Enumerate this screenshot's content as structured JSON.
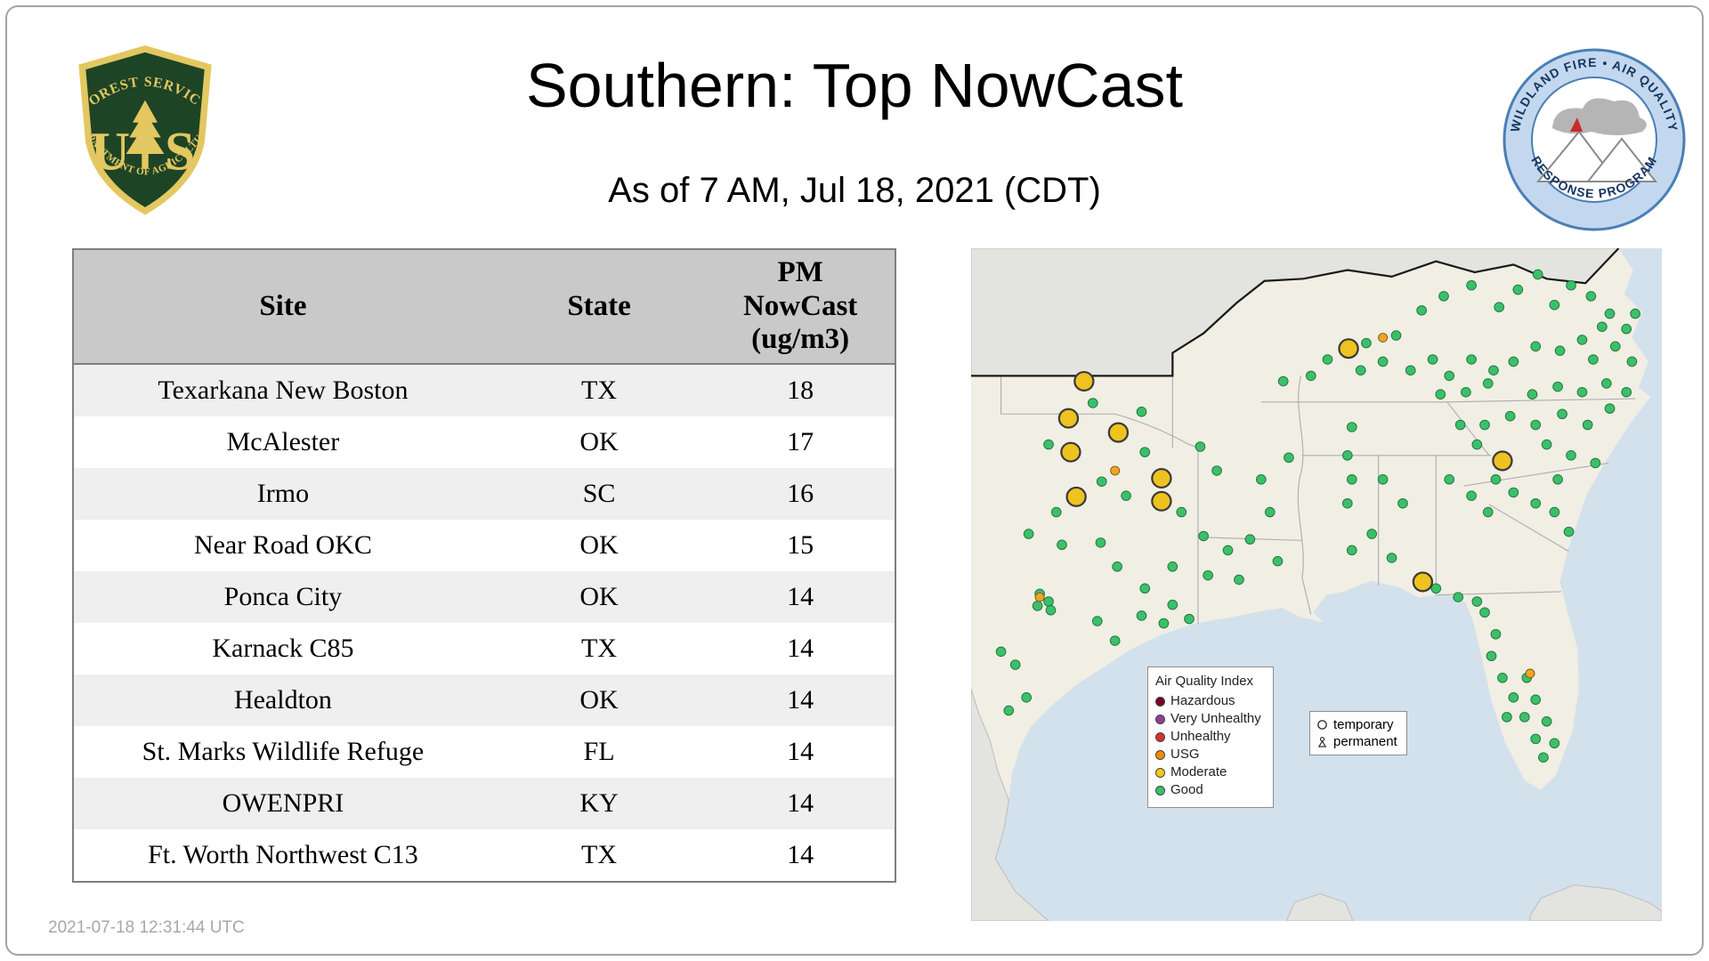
{
  "page": {
    "title": "Southern: Top NowCast",
    "subtitle": "As of  7 AM, Jul 18, 2021 (CDT)",
    "footer_timestamp": "2021-07-18 12:31:44 UTC"
  },
  "logos": {
    "forest_service": {
      "top_text": "FOREST SERVICE",
      "monogram_left": "U",
      "monogram_right": "S",
      "bottom_text": "DEPARTMENT OF AGRICULTURE"
    },
    "wfaqrp": {
      "top_text": "WILDLAND FIRE • AIR QUALITY",
      "bottom_text": "RESPONSE PROGRAM"
    }
  },
  "table": {
    "headers": {
      "site": "Site",
      "state": "State",
      "pm": "PM\nNowCast\n(ug/m3)"
    },
    "rows": [
      {
        "site": "Texarkana New Boston",
        "state": "TX",
        "pm": "18"
      },
      {
        "site": "McAlester",
        "state": "OK",
        "pm": "17"
      },
      {
        "site": "Irmo",
        "state": "SC",
        "pm": "16"
      },
      {
        "site": "Near Road OKC",
        "state": "OK",
        "pm": "15"
      },
      {
        "site": "Ponca City",
        "state": "OK",
        "pm": "14"
      },
      {
        "site": "Karnack C85",
        "state": "TX",
        "pm": "14"
      },
      {
        "site": "Healdton",
        "state": "OK",
        "pm": "14"
      },
      {
        "site": "St. Marks Wildlife Refuge",
        "state": "FL",
        "pm": "14"
      },
      {
        "site": "OWENPRI",
        "state": "KY",
        "pm": "14"
      },
      {
        "site": "Ft. Worth Northwest C13",
        "state": "TX",
        "pm": "14"
      }
    ]
  },
  "map": {
    "colors": {
      "water": "#d3e1ec",
      "land": "#f1eee4",
      "outside_land": "#e3e3e0",
      "good": "#3dbf6a",
      "good_stroke": "#1f7a42",
      "moderate": "#eec21f",
      "moderate_stroke": "#3a3a3a",
      "moderate_small": "#f0a32c"
    },
    "legend": {
      "title": "Air Quality Index",
      "items": [
        {
          "label": "Hazardous",
          "color": "#7e0023"
        },
        {
          "label": "Very Unhealthy",
          "color": "#8f3f97"
        },
        {
          "label": "Unhealthy",
          "color": "#d7302f"
        },
        {
          "label": "USG",
          "color": "#f18b00"
        },
        {
          "label": "Moderate",
          "color": "#f5c918"
        },
        {
          "label": "Good",
          "color": "#3dbf6a"
        }
      ]
    },
    "marker_legend": [
      {
        "label": "temporary",
        "shape": "circle"
      },
      {
        "label": "permanent",
        "shape": "person"
      }
    ],
    "markers": {
      "moderate": [
        [
          341,
          92
        ],
        [
          102,
          122
        ],
        [
          88,
          156
        ],
        [
          133,
          169
        ],
        [
          90,
          187
        ],
        [
          172,
          211
        ],
        [
          95,
          228
        ],
        [
          172,
          232
        ],
        [
          480,
          195
        ],
        [
          408,
          306
        ]
      ],
      "moderate_small": [
        [
          372,
          82
        ],
        [
          130,
          204
        ],
        [
          505,
          390
        ],
        [
          62,
          320
        ]
      ],
      "good": [
        [
          282,
          122
        ],
        [
          307,
          117
        ],
        [
          322,
          102
        ],
        [
          352,
          112
        ],
        [
          372,
          104
        ],
        [
          384,
          80
        ],
        [
          397,
          112
        ],
        [
          417,
          102
        ],
        [
          432,
          117
        ],
        [
          452,
          102
        ],
        [
          472,
          112
        ],
        [
          407,
          57
        ],
        [
          427,
          44
        ],
        [
          452,
          34
        ],
        [
          477,
          54
        ],
        [
          494,
          38
        ],
        [
          512,
          24
        ],
        [
          527,
          52
        ],
        [
          542,
          34
        ],
        [
          560,
          44
        ],
        [
          577,
          60
        ],
        [
          592,
          74
        ],
        [
          570,
          72
        ],
        [
          552,
          84
        ],
        [
          532,
          94
        ],
        [
          510,
          90
        ],
        [
          490,
          104
        ],
        [
          467,
          124
        ],
        [
          447,
          132
        ],
        [
          424,
          134
        ],
        [
          357,
          87
        ],
        [
          562,
          102
        ],
        [
          582,
          90
        ],
        [
          597,
          104
        ],
        [
          574,
          124
        ],
        [
          552,
          132
        ],
        [
          530,
          127
        ],
        [
          507,
          134
        ],
        [
          534,
          152
        ],
        [
          557,
          162
        ],
        [
          577,
          147
        ],
        [
          592,
          132
        ],
        [
          510,
          162
        ],
        [
          487,
          154
        ],
        [
          464,
          162
        ],
        [
          520,
          180
        ],
        [
          542,
          190
        ],
        [
          564,
          197
        ],
        [
          530,
          212
        ],
        [
          600,
          60
        ],
        [
          442,
          162
        ],
        [
          457,
          180
        ],
        [
          474,
          212
        ],
        [
          452,
          227
        ],
        [
          432,
          212
        ],
        [
          467,
          242
        ],
        [
          490,
          224
        ],
        [
          510,
          234
        ],
        [
          527,
          242
        ],
        [
          540,
          260
        ],
        [
          344,
          164
        ],
        [
          340,
          190
        ],
        [
          344,
          212
        ],
        [
          340,
          234
        ],
        [
          372,
          212
        ],
        [
          390,
          234
        ],
        [
          362,
          262
        ],
        [
          344,
          277
        ],
        [
          380,
          284
        ],
        [
          287,
          192
        ],
        [
          262,
          212
        ],
        [
          270,
          242
        ],
        [
          252,
          267
        ],
        [
          277,
          287
        ],
        [
          207,
          182
        ],
        [
          222,
          204
        ],
        [
          190,
          242
        ],
        [
          210,
          264
        ],
        [
          232,
          277
        ],
        [
          182,
          292
        ],
        [
          214,
          300
        ],
        [
          242,
          304
        ],
        [
          70,
          180
        ],
        [
          110,
          142
        ],
        [
          154,
          150
        ],
        [
          157,
          187
        ],
        [
          118,
          214
        ],
        [
          140,
          227
        ],
        [
          77,
          242
        ],
        [
          52,
          262
        ],
        [
          82,
          272
        ],
        [
          117,
          270
        ],
        [
          132,
          292
        ],
        [
          157,
          312
        ],
        [
          182,
          327
        ],
        [
          197,
          340
        ],
        [
          174,
          344
        ],
        [
          154,
          337
        ],
        [
          62,
          317
        ],
        [
          70,
          324
        ],
        [
          60,
          328
        ],
        [
          72,
          332
        ],
        [
          27,
          370
        ],
        [
          40,
          382
        ],
        [
          50,
          412
        ],
        [
          34,
          424
        ],
        [
          114,
          342
        ],
        [
          130,
          360
        ],
        [
          420,
          312
        ],
        [
          440,
          320
        ],
        [
          457,
          324
        ],
        [
          464,
          334
        ],
        [
          474,
          354
        ],
        [
          470,
          374
        ],
        [
          480,
          394
        ],
        [
          490,
          412
        ],
        [
          484,
          430
        ],
        [
          500,
          430
        ],
        [
          510,
          450
        ],
        [
          517,
          467
        ],
        [
          527,
          454
        ],
        [
          520,
          434
        ],
        [
          510,
          414
        ],
        [
          502,
          394
        ]
      ]
    }
  }
}
